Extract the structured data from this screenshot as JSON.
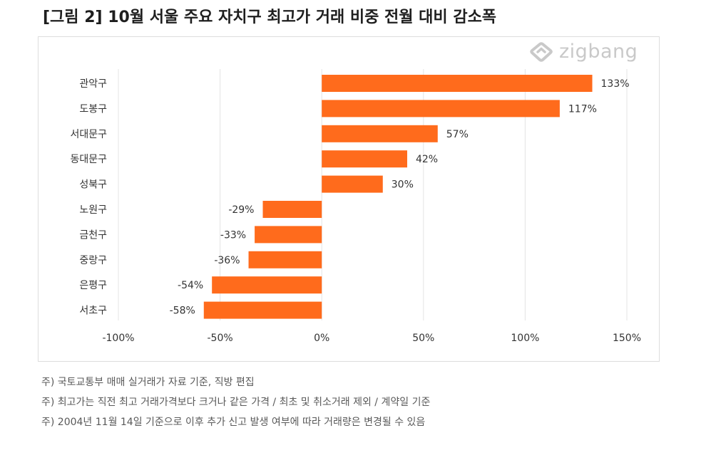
{
  "header": {
    "title": "[그림 2] 10월 서울 주요 자치구 최고가 거래 비중 전월 대비 감소폭"
  },
  "logo": {
    "text": "zigbang",
    "icon": "zigbang-house-logo-icon"
  },
  "colors": {
    "bar": "#ff6b1c",
    "grid": "#e4e4e4",
    "axis_text": "#333333"
  },
  "chart_data": {
    "type": "bar",
    "orientation": "horizontal",
    "title": "",
    "xlabel": "",
    "ylabel": "",
    "categories": [
      "관악구",
      "도봉구",
      "서대문구",
      "동대문구",
      "성북구",
      "노원구",
      "금천구",
      "중랑구",
      "은평구",
      "서초구"
    ],
    "values": [
      133,
      117,
      57,
      42,
      30,
      -29,
      -33,
      -36,
      -54,
      -58
    ],
    "value_labels": [
      "133%",
      "117%",
      "57%",
      "42%",
      "30%",
      "-29%",
      "-33%",
      "-36%",
      "-54%",
      "-58%"
    ],
    "xlim": [
      -100,
      150
    ],
    "xticks": [
      -100,
      -50,
      0,
      50,
      100,
      150
    ],
    "xtick_labels": [
      "-100%",
      "-50%",
      "0%",
      "50%",
      "100%",
      "150%"
    ],
    "grid": "vertical",
    "legend": "none"
  },
  "notes": [
    "주) 국토교통부 매매 실거래가 자료 기준, 직방 편집",
    "주) 최고가는 직전 최고 거래가격보다 크거나 같은 가격 / 최초 및 취소거래 제외 / 계약일 기준",
    "주) 2004년 11월 14일 기준으로 이후 추가 신고 발생 여부에 따라 거래량은 변경될 수 있음"
  ]
}
